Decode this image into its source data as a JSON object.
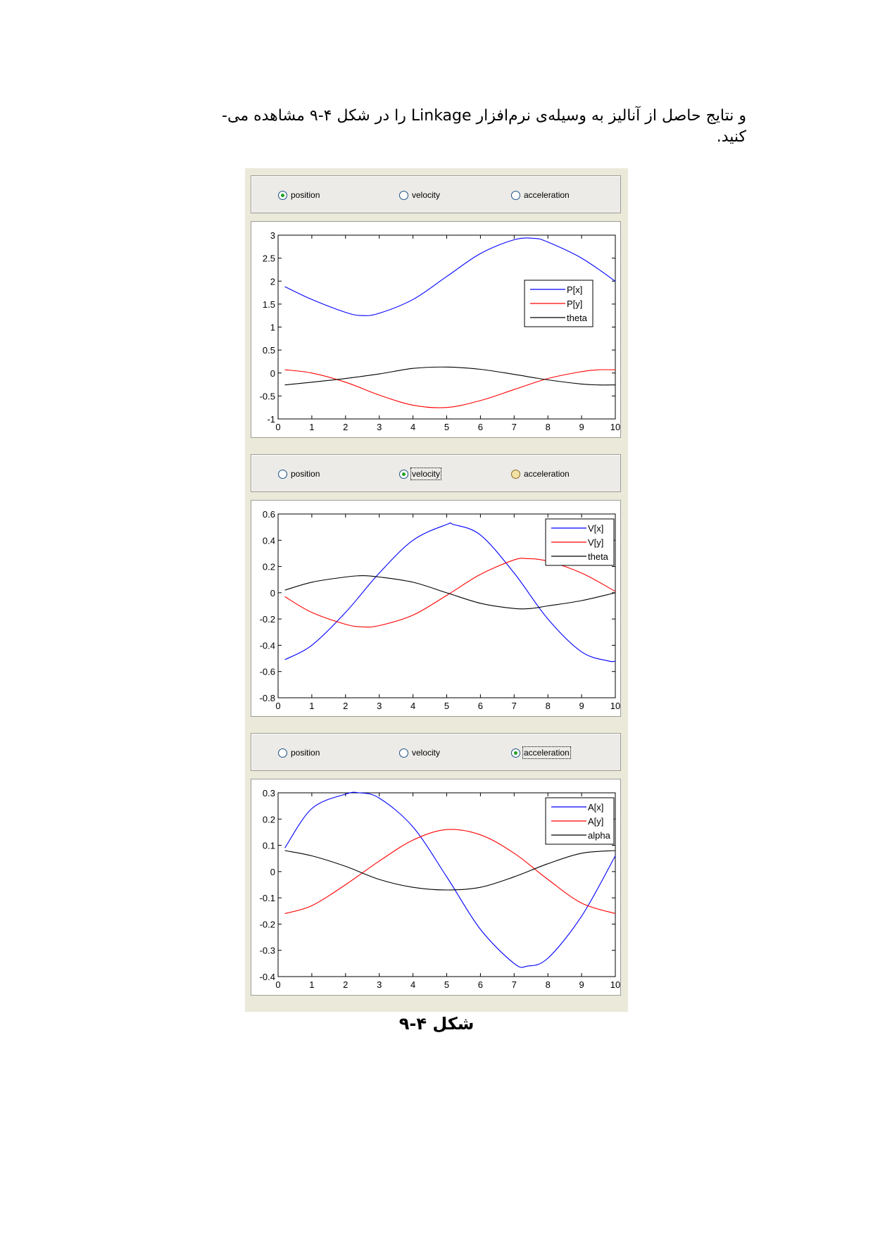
{
  "paragraph": {
    "line1": "و نتایج حاصل از آنالیز به وسیله‌ی نرم‌افزار Linkage را در شکل ۴-۹ مشاهده می-",
    "line2": "کنید."
  },
  "caption": "شکل ۴-۹",
  "figure": {
    "panels": [
      {
        "radios": [
          {
            "label": "position",
            "checked": true,
            "hover": false,
            "focused": false
          },
          {
            "label": "velocity",
            "checked": false,
            "hover": false,
            "focused": false
          },
          {
            "label": "acceleration",
            "checked": false,
            "hover": false,
            "focused": false
          }
        ]
      },
      {
        "radios": [
          {
            "label": "position",
            "checked": false,
            "hover": false,
            "focused": false
          },
          {
            "label": "velocity",
            "checked": true,
            "hover": false,
            "focused": true
          },
          {
            "label": "acceleration",
            "checked": false,
            "hover": true,
            "focused": false
          }
        ]
      },
      {
        "radios": [
          {
            "label": "position",
            "checked": false,
            "hover": false,
            "focused": false
          },
          {
            "label": "velocity",
            "checked": false,
            "hover": false,
            "focused": false
          },
          {
            "label": "acceleration",
            "checked": true,
            "hover": false,
            "focused": true
          }
        ]
      }
    ]
  },
  "chart_data": [
    {
      "type": "line",
      "xlim": [
        0,
        10
      ],
      "ylim": [
        -1,
        3
      ],
      "xticks": [
        "0",
        "1",
        "2",
        "3",
        "4",
        "5",
        "6",
        "7",
        "8",
        "9",
        "10"
      ],
      "yticks": [
        "3",
        "2.5",
        "2",
        "1.5",
        "1",
        "0.5",
        "0",
        "-0.5",
        "-1"
      ],
      "grid": false,
      "legend_position": "right",
      "series": [
        {
          "name": "P[x]",
          "color": "#0000ff",
          "x": [
            0.2,
            1,
            2,
            2.5,
            3,
            4,
            5,
            6,
            7,
            7.6,
            8,
            9,
            10
          ],
          "y": [
            1.88,
            1.6,
            1.32,
            1.25,
            1.3,
            1.6,
            2.1,
            2.6,
            2.9,
            2.93,
            2.85,
            2.5,
            2.0
          ]
        },
        {
          "name": "P[y]",
          "color": "#ff0000",
          "x": [
            0.2,
            1,
            2,
            3,
            4,
            5,
            6,
            7,
            8,
            9,
            9.5,
            10
          ],
          "y": [
            0.07,
            0.0,
            -0.2,
            -0.48,
            -0.7,
            -0.75,
            -0.6,
            -0.36,
            -0.12,
            0.03,
            0.07,
            0.07
          ]
        },
        {
          "name": "theta",
          "color": "#000000",
          "x": [
            0.2,
            1,
            2,
            3,
            4,
            5,
            6,
            7,
            8,
            9,
            9.5,
            10
          ],
          "y": [
            -0.26,
            -0.2,
            -0.12,
            -0.02,
            0.1,
            0.13,
            0.08,
            -0.03,
            -0.15,
            -0.24,
            -0.26,
            -0.26
          ]
        }
      ]
    },
    {
      "type": "line",
      "xlim": [
        0,
        10
      ],
      "ylim": [
        -0.8,
        0.6
      ],
      "xticks": [
        "0",
        "1",
        "2",
        "3",
        "4",
        "5",
        "6",
        "7",
        "8",
        "9",
        "10"
      ],
      "yticks": [
        "0.6",
        "0.4",
        "0.2",
        "0",
        "-0.2",
        "-0.4",
        "-0.6",
        "-0.8"
      ],
      "grid": false,
      "legend_position": "top-right",
      "series": [
        {
          "name": "V[x]",
          "color": "#0000ff",
          "x": [
            0.2,
            1,
            2,
            3,
            4,
            5,
            5.2,
            6,
            7,
            8,
            9,
            9.8,
            10
          ],
          "y": [
            -0.51,
            -0.4,
            -0.15,
            0.15,
            0.4,
            0.52,
            0.52,
            0.44,
            0.15,
            -0.2,
            -0.45,
            -0.52,
            -0.52
          ]
        },
        {
          "name": "V[y]",
          "color": "#ff0000",
          "x": [
            0.2,
            1,
            2,
            2.5,
            3,
            4,
            5,
            6,
            7,
            7.4,
            8,
            9,
            10
          ],
          "y": [
            -0.03,
            -0.15,
            -0.24,
            -0.26,
            -0.25,
            -0.17,
            -0.02,
            0.14,
            0.25,
            0.26,
            0.24,
            0.15,
            0.01
          ]
        },
        {
          "name": "theta",
          "color": "#000000",
          "x": [
            0.2,
            1,
            2,
            2.5,
            3,
            4,
            5,
            6,
            7,
            7.5,
            8,
            9,
            10
          ],
          "y": [
            0.02,
            0.08,
            0.12,
            0.13,
            0.12,
            0.08,
            0.0,
            -0.08,
            -0.12,
            -0.12,
            -0.1,
            -0.06,
            0.0
          ]
        }
      ]
    },
    {
      "type": "line",
      "xlim": [
        0,
        10
      ],
      "ylim": [
        -0.4,
        0.3
      ],
      "xticks": [
        "0",
        "1",
        "2",
        "3",
        "4",
        "5",
        "6",
        "7",
        "8",
        "9",
        "10"
      ],
      "yticks": [
        "0.3",
        "0.2",
        "0.1",
        "0",
        "-0.1",
        "-0.2",
        "-0.3",
        "-0.4"
      ],
      "grid": false,
      "legend_position": "top-right",
      "series": [
        {
          "name": "A[x]",
          "color": "#0000ff",
          "x": [
            0.2,
            1,
            2,
            2.4,
            3,
            4,
            5,
            6,
            7,
            7.4,
            8,
            9,
            10
          ],
          "y": [
            0.09,
            0.24,
            0.295,
            0.3,
            0.28,
            0.17,
            -0.02,
            -0.22,
            -0.35,
            -0.36,
            -0.33,
            -0.17,
            0.06
          ]
        },
        {
          "name": "A[y]",
          "color": "#ff0000",
          "x": [
            0.2,
            1,
            2,
            3,
            4,
            5,
            6,
            7,
            8,
            9,
            10
          ],
          "y": [
            -0.16,
            -0.13,
            -0.05,
            0.04,
            0.12,
            0.16,
            0.14,
            0.07,
            -0.03,
            -0.12,
            -0.16
          ]
        },
        {
          "name": "alpha",
          "color": "#000000",
          "x": [
            0.2,
            1,
            2,
            3,
            4,
            5,
            6,
            7,
            8,
            9,
            10
          ],
          "y": [
            0.08,
            0.06,
            0.02,
            -0.03,
            -0.06,
            -0.07,
            -0.06,
            -0.02,
            0.03,
            0.07,
            0.08
          ]
        }
      ]
    }
  ]
}
